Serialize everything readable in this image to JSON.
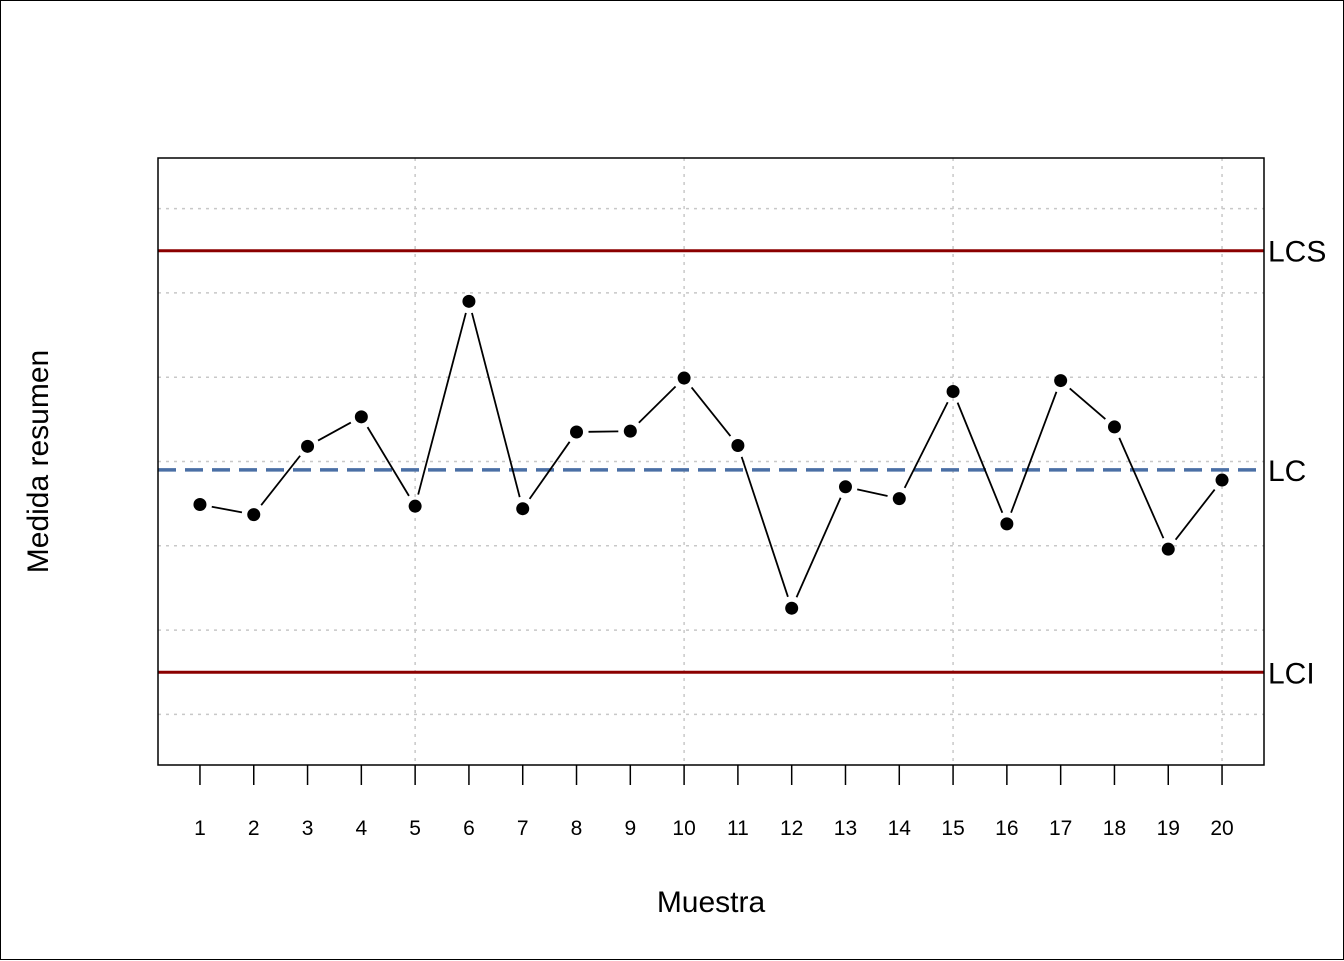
{
  "chart_data": {
    "type": "line",
    "title": "",
    "xlabel": "Muestra",
    "ylabel": "Medida resumen",
    "x": [
      1,
      2,
      3,
      4,
      5,
      6,
      7,
      8,
      9,
      10,
      11,
      12,
      13,
      14,
      15,
      16,
      17,
      18,
      19,
      20
    ],
    "x_tick_labels": [
      "1",
      "2",
      "3",
      "4",
      "5",
      "6",
      "7",
      "8",
      "9",
      "10",
      "11",
      "12",
      "13",
      "14",
      "15",
      "16",
      "17",
      "18",
      "19",
      "20"
    ],
    "y": [
      -0.51,
      -0.63,
      0.18,
      0.53,
      -0.53,
      1.9,
      -0.56,
      0.35,
      0.36,
      0.99,
      0.19,
      -1.74,
      -0.3,
      -0.44,
      0.83,
      -0.74,
      0.96,
      0.41,
      -1.04,
      -0.22
    ],
    "xlim": [
      0.22,
      20.78
    ],
    "ylim": [
      -3.6,
      3.6
    ],
    "y_axis_ticks_shown": false,
    "grid": true,
    "grid_y": [
      -3,
      -2,
      -1,
      0,
      1,
      2,
      3
    ],
    "control_limits": [
      {
        "label": "LCS",
        "value": 2.5,
        "color": "#8B0000",
        "style": "solid"
      },
      {
        "label": "LC",
        "value": -0.1,
        "color": "#4A6FA5",
        "style": "dashed"
      },
      {
        "label": "LCI",
        "value": -2.5,
        "color": "#8B0000",
        "style": "solid"
      }
    ],
    "point_color": "#000000",
    "line_color": "#000000"
  }
}
